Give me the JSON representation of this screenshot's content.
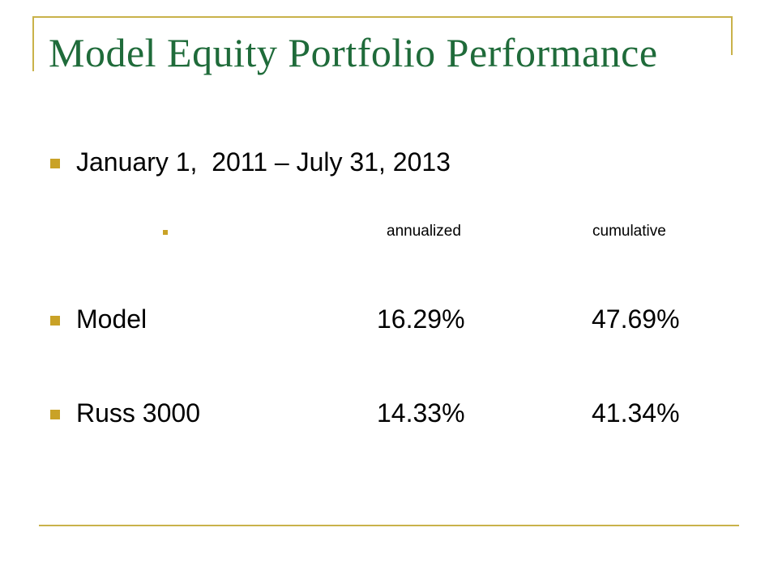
{
  "slide": {
    "title": "Model Equity Portfolio Performance",
    "period": "January 1,  2011 – July 31, 2013",
    "columns": {
      "annualized": "annualized",
      "cumulative": "cumulative"
    },
    "rows": [
      {
        "label": "Model",
        "annualized": "16.29%",
        "cumulative": "47.69%"
      },
      {
        "label": "Russ 3000",
        "annualized": "14.33%",
        "cumulative": "41.34%"
      }
    ]
  },
  "colors": {
    "title": "#1f6b3a",
    "frame": "#c9b24a",
    "bullet": "#c9a227",
    "text": "#000000"
  }
}
